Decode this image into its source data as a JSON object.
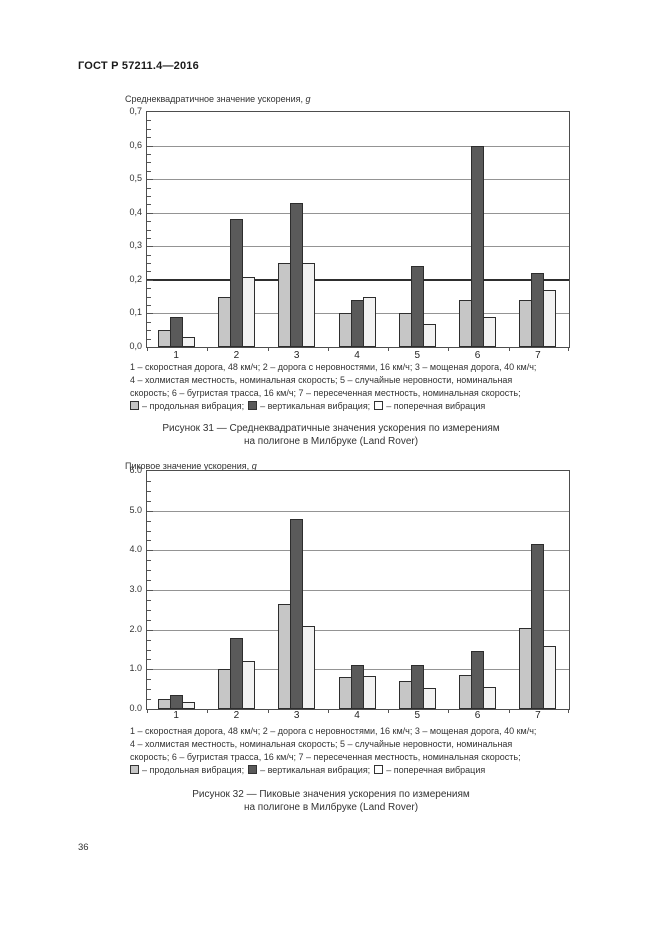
{
  "page": {
    "header": "ГОСТ Р 57211.4—2016",
    "page_number": "36"
  },
  "chart_data": [
    {
      "type": "bar",
      "title": "Среднеквадратичное значение ускорения,",
      "title_unit": "g",
      "categories": [
        "1",
        "2",
        "3",
        "4",
        "5",
        "6",
        "7"
      ],
      "series": [
        {
          "name": "продольная вибрация",
          "color": "#c6c6c6",
          "values": [
            0.05,
            0.15,
            0.25,
            0.1,
            0.1,
            0.14,
            0.14
          ]
        },
        {
          "name": "вертикальная вибрация",
          "color": "#5a5a5a",
          "values": [
            0.09,
            0.38,
            0.43,
            0.14,
            0.24,
            0.6,
            0.22
          ]
        },
        {
          "name": "поперечная вибрация",
          "color": "#f2f2f2",
          "values": [
            0.03,
            0.21,
            0.25,
            0.15,
            0.07,
            0.09,
            0.17
          ]
        }
      ],
      "ylim": [
        0,
        0.7
      ],
      "yticks": [
        {
          "v": 0.0,
          "label": "0,0"
        },
        {
          "v": 0.1,
          "label": "0,1"
        },
        {
          "v": 0.2,
          "label": "0,2"
        },
        {
          "v": 0.3,
          "label": "0,3"
        },
        {
          "v": 0.4,
          "label": "0,4"
        },
        {
          "v": 0.5,
          "label": "0,5"
        },
        {
          "v": 0.6,
          "label": "0,6"
        },
        {
          "v": 0.7,
          "label": "0,7"
        }
      ],
      "emphasis_value": 0.2,
      "grid": true,
      "legend_position": "below",
      "notes_lines": [
        "1 – скоростная дорога, 48 км/ч; 2 – дорога с неровностями, 16 км/ч; 3 – мощеная дорога, 40 км/ч;",
        "4 – холмистая местность, номинальная скорость; 5 – случайные неровности, номинальная",
        "скорость; 6 – бугристая трасса, 16 км/ч; 7 – пересеченная местность, номинальная скорость;"
      ],
      "legend": [
        {
          "swatch_color": "#c6c6c6",
          "text": "– продольная вибрация;"
        },
        {
          "swatch_color": "#5a5a5a",
          "text": "– вертикальная вибрация;"
        },
        {
          "swatch_color": "#ffffff",
          "text": "– поперечная вибрация"
        }
      ],
      "caption_lines": [
        "Рисунок 31 — Среднеквадратичные значения ускорения по измерениям",
        "на полигоне в Милбруке (Land Rover)"
      ]
    },
    {
      "type": "bar",
      "title": "Пиковое значение ускорения,",
      "title_unit": "g",
      "categories": [
        "1",
        "2",
        "3",
        "4",
        "5",
        "6",
        "7"
      ],
      "series": [
        {
          "name": "продольная вибрация",
          "color": "#c6c6c6",
          "values": [
            0.25,
            1.0,
            2.65,
            0.8,
            0.7,
            0.85,
            2.05
          ]
        },
        {
          "name": "вертикальная вибрация",
          "color": "#5a5a5a",
          "values": [
            0.35,
            1.8,
            4.8,
            1.1,
            1.12,
            1.45,
            4.15
          ]
        },
        {
          "name": "поперечная вибрация",
          "color": "#f2f2f2",
          "values": [
            0.18,
            1.2,
            2.1,
            0.82,
            0.52,
            0.55,
            1.6
          ]
        }
      ],
      "ylim": [
        0,
        6
      ],
      "yticks": [
        {
          "v": 0,
          "label": "0.0"
        },
        {
          "v": 1,
          "label": "1.0"
        },
        {
          "v": 2,
          "label": "2.0"
        },
        {
          "v": 3,
          "label": "3.0"
        },
        {
          "v": 4,
          "label": "4.0"
        },
        {
          "v": 5,
          "label": "5.0"
        },
        {
          "v": 6,
          "label": "6.0"
        }
      ],
      "grid": true,
      "legend_position": "below",
      "notes_lines": [
        "1 – скоростная дорога, 48 км/ч; 2 – дорога с неровностями, 16 км/ч; 3 – мощеная дорога, 40 км/ч;",
        "4 – холмистая местность, номинальная скорость; 5 – случайные неровности, номинальная",
        "скорость; 6 – бугристая трасса, 16 км/ч; 7 – пересеченная местность, номинальная скорость;"
      ],
      "legend": [
        {
          "swatch_color": "#c6c6c6",
          "text": "– продольная вибрация;"
        },
        {
          "swatch_color": "#5a5a5a",
          "text": "– вертикальная вибрация;"
        },
        {
          "swatch_color": "#ffffff",
          "text": "– поперечная вибрация"
        }
      ],
      "caption_lines": [
        "Рисунок 32 — Пиковые значения ускорения по измерениям",
        "на полигоне в Милбруке (Land Rover)"
      ]
    }
  ]
}
